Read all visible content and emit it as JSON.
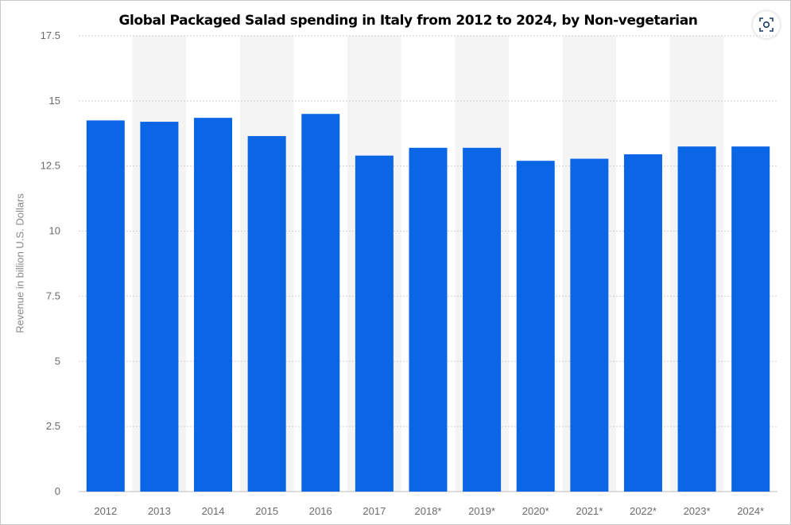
{
  "chart_data": {
    "type": "bar",
    "title": "Global Packaged Salad spending in Italy from 2012 to 2024, by Non-vegetarian",
    "xlabel": "",
    "ylabel": "Revenue in billion U.S. Dollars",
    "categories": [
      "2012",
      "2013",
      "2014",
      "2015",
      "2016",
      "2017",
      "2018*",
      "2019*",
      "2020*",
      "2021*",
      "2022*",
      "2023*",
      "2024*"
    ],
    "values": [
      14.25,
      14.2,
      14.35,
      13.65,
      14.5,
      12.9,
      13.2,
      13.2,
      12.7,
      12.78,
      12.95,
      13.25,
      13.25
    ],
    "ylim": [
      0,
      17.5
    ],
    "yticks": [
      "0",
      "2.5",
      "5",
      "7.5",
      "10",
      "12.5",
      "15",
      "17.5"
    ],
    "bar_color": "#0a66e4",
    "band_color": "#f4f4f4",
    "grid": true,
    "legend": "none"
  }
}
